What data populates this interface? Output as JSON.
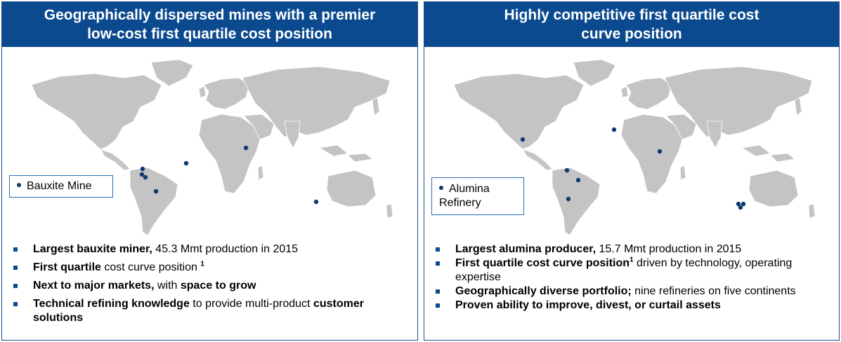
{
  "left": {
    "title_line1": "Geographically dispersed mines with a premier",
    "title_line2": "low-cost first quartile cost position",
    "legend_label": "Bauxite Mine",
    "bullets": [
      {
        "bold": "Largest bauxite miner,",
        "rest": " 45.3 Mmt production in 2015"
      },
      {
        "bold": "First quartile",
        "rest": " cost curve position ",
        "sup": "1"
      },
      {
        "bold": "Next to major markets,",
        "rest": " with ",
        "bold2": "space to grow"
      },
      {
        "bold": "Technical refining knowledge",
        "rest": " to provide multi-product ",
        "bold2": "customer solutions"
      }
    ],
    "marker_color": "#0b3a70"
  },
  "right": {
    "title_line1": "Highly competitive first quartile cost",
    "title_line2": "curve position",
    "legend_label": "Alumina Refinery",
    "bullets": [
      {
        "bold": "Largest alumina producer,",
        "rest": " 15.7 Mmt production in 2015"
      },
      {
        "bold": "First quartile cost curve position",
        "sup": "1",
        "rest": " driven by technology, operating expertise"
      },
      {
        "bold": "Geographically diverse portfolio;",
        "rest": " nine refineries on five continents"
      },
      {
        "bold": "Proven ability to improve, divest, or curtail assets",
        "rest": ""
      }
    ],
    "marker_color": "#0b3a70"
  },
  "colors": {
    "header_bg": "#0b4a8f",
    "land": "#c4c4c4",
    "border": "#1f4e8c"
  }
}
